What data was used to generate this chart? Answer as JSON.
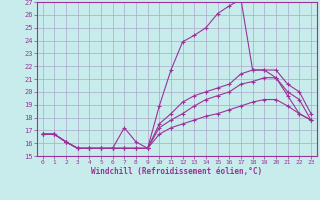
{
  "xlabel": "Windchill (Refroidissement éolien,°C)",
  "bg_color": "#c8ecec",
  "line_color": "#993399",
  "grid_color": "#aaaacc",
  "xlim": [
    -0.5,
    23.5
  ],
  "ylim": [
    15,
    27
  ],
  "xticks": [
    0,
    1,
    2,
    3,
    4,
    5,
    6,
    7,
    8,
    9,
    10,
    11,
    12,
    13,
    14,
    15,
    16,
    17,
    18,
    19,
    20,
    21,
    22,
    23
  ],
  "yticks": [
    15,
    16,
    17,
    18,
    19,
    20,
    21,
    22,
    23,
    24,
    25,
    26,
    27
  ],
  "lines": [
    {
      "x": [
        0,
        1,
        2,
        3,
        4,
        5,
        6,
        7,
        8,
        9,
        10,
        11,
        12,
        13,
        14,
        15,
        16,
        17,
        18,
        19,
        20,
        21,
        22,
        23
      ],
      "y": [
        16.7,
        16.7,
        16.1,
        15.6,
        15.6,
        15.6,
        15.6,
        17.2,
        16.1,
        15.6,
        18.9,
        21.7,
        23.9,
        24.4,
        25.0,
        26.1,
        26.7,
        27.2,
        21.7,
        21.7,
        21.1,
        20.0,
        19.4,
        17.8
      ]
    },
    {
      "x": [
        0,
        1,
        2,
        3,
        4,
        5,
        6,
        7,
        8,
        9,
        10,
        11,
        12,
        13,
        14,
        15,
        16,
        17,
        18,
        19,
        20,
        21,
        22,
        23
      ],
      "y": [
        16.7,
        16.7,
        16.1,
        15.6,
        15.6,
        15.6,
        15.6,
        15.6,
        15.6,
        15.6,
        17.5,
        18.3,
        19.2,
        19.7,
        20.0,
        20.3,
        20.6,
        21.4,
        21.7,
        21.7,
        21.7,
        20.6,
        20.0,
        18.3
      ]
    },
    {
      "x": [
        0,
        1,
        2,
        3,
        4,
        5,
        6,
        7,
        8,
        9,
        10,
        11,
        12,
        13,
        14,
        15,
        16,
        17,
        18,
        19,
        20,
        21,
        22,
        23
      ],
      "y": [
        16.7,
        16.7,
        16.1,
        15.6,
        15.6,
        15.6,
        15.6,
        15.6,
        15.6,
        15.6,
        17.2,
        17.8,
        18.3,
        18.9,
        19.4,
        19.7,
        20.0,
        20.6,
        20.8,
        21.1,
        21.1,
        19.7,
        18.3,
        17.8
      ]
    },
    {
      "x": [
        0,
        1,
        2,
        3,
        4,
        5,
        6,
        7,
        8,
        9,
        10,
        11,
        12,
        13,
        14,
        15,
        16,
        17,
        18,
        19,
        20,
        21,
        22,
        23
      ],
      "y": [
        16.7,
        16.7,
        16.1,
        15.6,
        15.6,
        15.6,
        15.6,
        15.6,
        15.6,
        15.6,
        16.7,
        17.2,
        17.5,
        17.8,
        18.1,
        18.3,
        18.6,
        18.9,
        19.2,
        19.4,
        19.4,
        18.9,
        18.3,
        17.8
      ]
    }
  ]
}
